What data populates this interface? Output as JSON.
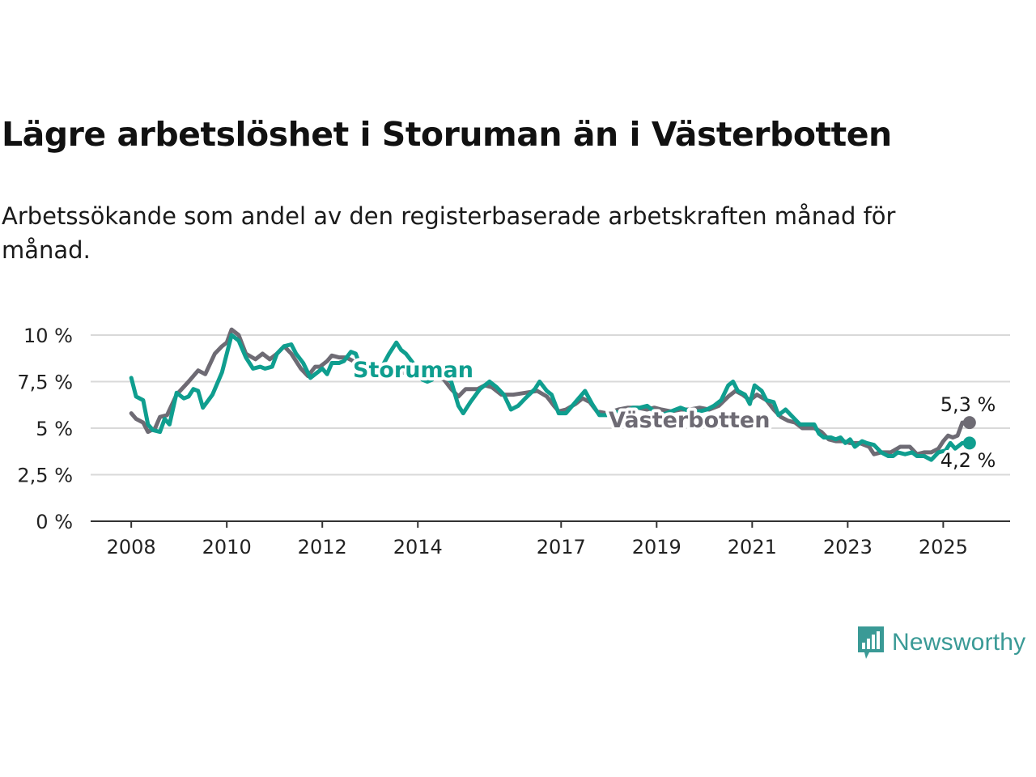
{
  "title": "Lägre arbetslöshet i Storuman än i Västerbotten",
  "subtitle": "Arbetssökande som andel av den registerbaserade arbetskraften månad för månad.",
  "brand": {
    "name": "Newsworthy",
    "icon": "newsworthy-logo-icon",
    "color": "#3a9a96"
  },
  "chart_data": {
    "type": "line",
    "y_ticks": [
      "0 %",
      "2,5 %",
      "5 %",
      "7,5 %",
      "10 %"
    ],
    "y_tick_values": [
      0,
      2.5,
      5,
      7.5,
      10
    ],
    "x_ticks": [
      "2008",
      "2010",
      "2012",
      "2014",
      "2017",
      "2019",
      "2021",
      "2023",
      "2025"
    ],
    "x_tick_values": [
      2008,
      2010,
      2012,
      2014,
      2017,
      2019,
      2021,
      2023,
      2025
    ],
    "xlim": [
      2007.15,
      2026.4
    ],
    "ylim": [
      0,
      10.3
    ],
    "grid": true,
    "series": [
      {
        "name": "Storuman",
        "color": "#0f9e8f",
        "end_label": "4,2 %",
        "points": [
          [
            2008.0,
            7.7
          ],
          [
            2008.1,
            6.7
          ],
          [
            2008.25,
            6.5
          ],
          [
            2008.35,
            5.2
          ],
          [
            2008.45,
            4.9
          ],
          [
            2008.6,
            4.8
          ],
          [
            2008.7,
            5.5
          ],
          [
            2008.8,
            5.2
          ],
          [
            2008.95,
            6.9
          ],
          [
            2009.1,
            6.6
          ],
          [
            2009.2,
            6.7
          ],
          [
            2009.3,
            7.1
          ],
          [
            2009.4,
            7.0
          ],
          [
            2009.5,
            6.1
          ],
          [
            2009.7,
            6.8
          ],
          [
            2009.9,
            8.0
          ],
          [
            2010.0,
            9.0
          ],
          [
            2010.1,
            10.0
          ],
          [
            2010.25,
            9.7
          ],
          [
            2010.4,
            8.8
          ],
          [
            2010.55,
            8.2
          ],
          [
            2010.7,
            8.3
          ],
          [
            2010.8,
            8.2
          ],
          [
            2010.95,
            8.3
          ],
          [
            2011.05,
            9.0
          ],
          [
            2011.2,
            9.4
          ],
          [
            2011.35,
            9.5
          ],
          [
            2011.45,
            9.0
          ],
          [
            2011.6,
            8.5
          ],
          [
            2011.75,
            7.7
          ],
          [
            2011.9,
            8.0
          ],
          [
            2012.0,
            8.2
          ],
          [
            2012.1,
            7.9
          ],
          [
            2012.2,
            8.5
          ],
          [
            2012.35,
            8.5
          ],
          [
            2012.45,
            8.6
          ],
          [
            2012.6,
            9.1
          ],
          [
            2012.7,
            9.0
          ],
          [
            2012.8,
            8.3
          ],
          [
            2012.9,
            7.9
          ],
          [
            2013.0,
            8.0
          ],
          [
            2013.1,
            8.3
          ],
          [
            2013.25,
            8.3
          ],
          [
            2013.4,
            9.0
          ],
          [
            2013.55,
            9.6
          ],
          [
            2013.65,
            9.2
          ],
          [
            2013.75,
            9.0
          ],
          [
            2013.9,
            8.5
          ],
          [
            2014.0,
            8.0
          ],
          [
            2014.1,
            7.6
          ],
          [
            2014.2,
            7.5
          ],
          [
            2014.3,
            7.6
          ],
          [
            2014.4,
            8.3
          ],
          [
            2014.5,
            8.2
          ],
          [
            2014.6,
            7.7
          ],
          [
            2014.7,
            7.5
          ],
          [
            2014.85,
            6.2
          ],
          [
            2014.95,
            5.8
          ],
          [
            2015.1,
            6.4
          ],
          [
            2015.3,
            7.1
          ],
          [
            2015.5,
            7.5
          ],
          [
            2015.65,
            7.2
          ],
          [
            2015.8,
            6.8
          ],
          [
            2015.95,
            6.0
          ],
          [
            2016.1,
            6.2
          ],
          [
            2016.25,
            6.6
          ],
          [
            2016.45,
            7.1
          ],
          [
            2016.55,
            7.5
          ],
          [
            2016.7,
            7.0
          ],
          [
            2016.8,
            6.8
          ],
          [
            2016.95,
            5.8
          ],
          [
            2017.1,
            5.8
          ],
          [
            2017.3,
            6.4
          ],
          [
            2017.5,
            7.0
          ],
          [
            2017.65,
            6.3
          ],
          [
            2017.8,
            5.7
          ],
          [
            2017.95,
            5.7
          ],
          [
            2018.1,
            5.9
          ],
          [
            2018.25,
            5.8
          ],
          [
            2018.35,
            5.9
          ],
          [
            2018.5,
            6.1
          ],
          [
            2018.65,
            6.1
          ],
          [
            2018.8,
            6.2
          ],
          [
            2018.95,
            5.9
          ],
          [
            2019.1,
            5.7
          ],
          [
            2019.3,
            5.9
          ],
          [
            2019.5,
            6.1
          ],
          [
            2019.7,
            5.9
          ],
          [
            2019.9,
            5.9
          ],
          [
            2020.05,
            6.0
          ],
          [
            2020.2,
            6.2
          ],
          [
            2020.35,
            6.5
          ],
          [
            2020.5,
            7.3
          ],
          [
            2020.6,
            7.5
          ],
          [
            2020.7,
            7.0
          ],
          [
            2020.85,
            6.8
          ],
          [
            2020.95,
            6.3
          ],
          [
            2021.05,
            7.3
          ],
          [
            2021.2,
            7.0
          ],
          [
            2021.3,
            6.5
          ],
          [
            2021.45,
            6.4
          ],
          [
            2021.55,
            5.7
          ],
          [
            2021.7,
            6.0
          ],
          [
            2021.85,
            5.6
          ],
          [
            2022.0,
            5.2
          ],
          [
            2022.3,
            5.2
          ],
          [
            2022.4,
            4.7
          ],
          [
            2022.5,
            4.5
          ],
          [
            2022.65,
            4.5
          ],
          [
            2022.75,
            4.4
          ],
          [
            2022.85,
            4.5
          ],
          [
            2022.95,
            4.2
          ],
          [
            2023.05,
            4.4
          ],
          [
            2023.15,
            4.0
          ],
          [
            2023.3,
            4.3
          ],
          [
            2023.4,
            4.2
          ],
          [
            2023.55,
            4.1
          ],
          [
            2023.7,
            3.7
          ],
          [
            2023.85,
            3.5
          ],
          [
            2023.95,
            3.5
          ],
          [
            2024.05,
            3.7
          ],
          [
            2024.2,
            3.6
          ],
          [
            2024.35,
            3.7
          ],
          [
            2024.45,
            3.5
          ],
          [
            2024.6,
            3.5
          ],
          [
            2024.75,
            3.3
          ],
          [
            2024.9,
            3.7
          ],
          [
            2025.05,
            3.8
          ],
          [
            2025.15,
            4.2
          ],
          [
            2025.25,
            3.9
          ],
          [
            2025.4,
            4.2
          ],
          [
            2025.55,
            4.2
          ]
        ]
      },
      {
        "name": "Västerbotten",
        "color": "#6e6b74",
        "end_label": "5,3 %",
        "points": [
          [
            2008.0,
            5.8
          ],
          [
            2008.1,
            5.5
          ],
          [
            2008.25,
            5.3
          ],
          [
            2008.35,
            4.8
          ],
          [
            2008.5,
            5.0
          ],
          [
            2008.6,
            5.6
          ],
          [
            2008.75,
            5.7
          ],
          [
            2008.95,
            6.8
          ],
          [
            2009.2,
            7.5
          ],
          [
            2009.4,
            8.1
          ],
          [
            2009.55,
            7.9
          ],
          [
            2009.75,
            9.0
          ],
          [
            2009.9,
            9.4
          ],
          [
            2010.0,
            9.6
          ],
          [
            2010.1,
            10.3
          ],
          [
            2010.25,
            10.0
          ],
          [
            2010.4,
            9.0
          ],
          [
            2010.6,
            8.7
          ],
          [
            2010.75,
            9.0
          ],
          [
            2010.9,
            8.7
          ],
          [
            2011.05,
            9.0
          ],
          [
            2011.2,
            9.4
          ],
          [
            2011.35,
            9.0
          ],
          [
            2011.55,
            8.2
          ],
          [
            2011.7,
            7.8
          ],
          [
            2011.85,
            8.3
          ],
          [
            2011.95,
            8.3
          ],
          [
            2012.1,
            8.6
          ],
          [
            2012.2,
            8.9
          ],
          [
            2012.35,
            8.8
          ],
          [
            2012.5,
            8.8
          ],
          [
            2012.65,
            8.6
          ],
          [
            2012.8,
            8.0
          ],
          [
            2012.9,
            7.8
          ],
          [
            2013.0,
            8.2
          ],
          [
            2013.2,
            8.4
          ],
          [
            2013.35,
            8.2
          ],
          [
            2013.55,
            8.3
          ],
          [
            2013.75,
            7.9
          ],
          [
            2013.95,
            8.0
          ],
          [
            2014.1,
            7.7
          ],
          [
            2014.25,
            7.6
          ],
          [
            2014.4,
            7.8
          ],
          [
            2014.55,
            7.6
          ],
          [
            2014.7,
            7.1
          ],
          [
            2014.85,
            6.7
          ],
          [
            2015.0,
            7.1
          ],
          [
            2015.25,
            7.1
          ],
          [
            2015.4,
            7.3
          ],
          [
            2015.55,
            7.2
          ],
          [
            2015.75,
            6.8
          ],
          [
            2016.0,
            6.8
          ],
          [
            2016.25,
            6.9
          ],
          [
            2016.5,
            7.0
          ],
          [
            2016.7,
            6.7
          ],
          [
            2016.85,
            6.2
          ],
          [
            2016.95,
            5.9
          ],
          [
            2017.1,
            6.0
          ],
          [
            2017.3,
            6.3
          ],
          [
            2017.45,
            6.6
          ],
          [
            2017.6,
            6.4
          ],
          [
            2017.75,
            5.9
          ],
          [
            2017.95,
            5.8
          ],
          [
            2018.2,
            6.0
          ],
          [
            2018.4,
            6.1
          ],
          [
            2018.6,
            6.1
          ],
          [
            2018.8,
            6.0
          ],
          [
            2018.95,
            6.1
          ],
          [
            2019.1,
            6.0
          ],
          [
            2019.3,
            5.9
          ],
          [
            2019.5,
            6.0
          ],
          [
            2019.7,
            6.0
          ],
          [
            2019.9,
            6.1
          ],
          [
            2020.1,
            6.0
          ],
          [
            2020.3,
            6.2
          ],
          [
            2020.5,
            6.7
          ],
          [
            2020.65,
            7.0
          ],
          [
            2020.8,
            6.8
          ],
          [
            2020.95,
            6.5
          ],
          [
            2021.1,
            6.8
          ],
          [
            2021.3,
            6.5
          ],
          [
            2021.45,
            6.0
          ],
          [
            2021.6,
            5.6
          ],
          [
            2021.75,
            5.4
          ],
          [
            2021.9,
            5.3
          ],
          [
            2022.05,
            5.0
          ],
          [
            2022.3,
            5.0
          ],
          [
            2022.45,
            4.8
          ],
          [
            2022.6,
            4.4
          ],
          [
            2022.75,
            4.3
          ],
          [
            2022.9,
            4.3
          ],
          [
            2023.05,
            4.2
          ],
          [
            2023.25,
            4.2
          ],
          [
            2023.45,
            4.0
          ],
          [
            2023.55,
            3.6
          ],
          [
            2023.7,
            3.7
          ],
          [
            2023.9,
            3.7
          ],
          [
            2024.1,
            4.0
          ],
          [
            2024.3,
            4.0
          ],
          [
            2024.45,
            3.6
          ],
          [
            2024.6,
            3.7
          ],
          [
            2024.75,
            3.7
          ],
          [
            2024.9,
            3.9
          ],
          [
            2025.0,
            4.3
          ],
          [
            2025.1,
            4.6
          ],
          [
            2025.2,
            4.5
          ],
          [
            2025.3,
            4.6
          ],
          [
            2025.4,
            5.3
          ],
          [
            2025.55,
            5.3
          ]
        ]
      }
    ]
  }
}
